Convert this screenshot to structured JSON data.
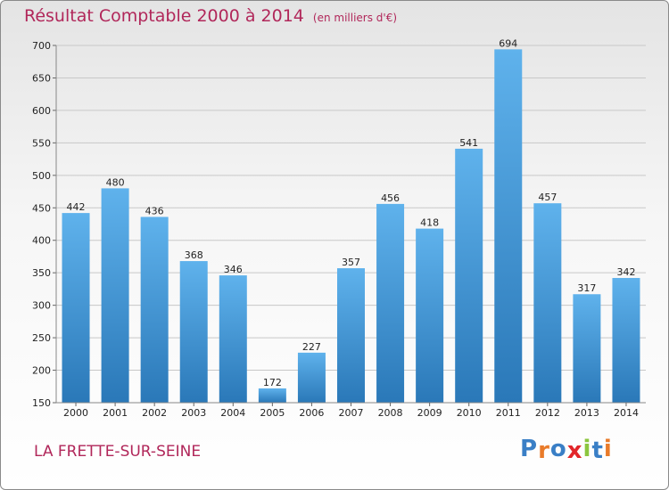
{
  "header": {
    "title": "Résultat Comptable 2000 à 2014",
    "subtitle": "(en milliers d'€)"
  },
  "footer": {
    "town": "LA FRETTE-SUR-SEINE",
    "logo_text": "Proxiti"
  },
  "colors": {
    "title": "#b1275a",
    "bar_top": "#5fb2ec",
    "bar_bottom": "#2a78b8",
    "grid": "#c8c8c8",
    "logo_letters": [
      "#3a7fc6",
      "#e97b2a",
      "#3a7fc6",
      "#e2262a",
      "#8cc63f",
      "#3a7fc6",
      "#e97b2a"
    ]
  },
  "chart_data": {
    "type": "bar",
    "title": "Résultat Comptable 2000 à 2014",
    "subtitle": "(en milliers d'€)",
    "xlabel": "",
    "ylabel": "",
    "categories": [
      "2000",
      "2001",
      "2002",
      "2003",
      "2004",
      "2005",
      "2006",
      "2007",
      "2008",
      "2009",
      "2010",
      "2011",
      "2012",
      "2013",
      "2014"
    ],
    "values": [
      442,
      480,
      436,
      368,
      346,
      172,
      227,
      357,
      456,
      418,
      541,
      694,
      457,
      317,
      342
    ],
    "value_labels": [
      "442",
      "480",
      "436",
      "368",
      "346",
      "172",
      "227",
      "357",
      "456",
      "418",
      "541",
      "694",
      "457",
      "317",
      "342"
    ],
    "ylim": [
      150,
      700
    ],
    "yticks": [
      150,
      200,
      250,
      300,
      350,
      400,
      450,
      500,
      550,
      600,
      650,
      700
    ],
    "grid": true,
    "legend": "none"
  }
}
